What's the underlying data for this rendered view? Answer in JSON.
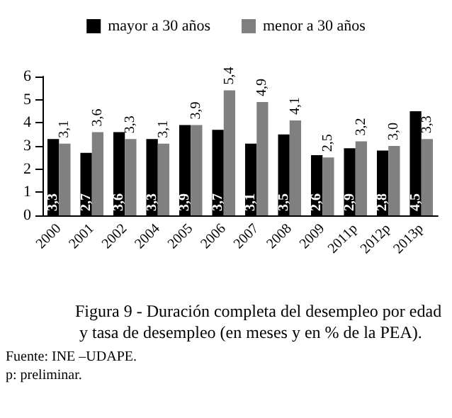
{
  "chart_data": {
    "type": "bar",
    "title": "Figura 9 - Duración completa del desempleo por edad y tasa de desempleo (en meses y en % de la PEA).",
    "categories": [
      "2000",
      "2001",
      "2002",
      "2004",
      "2005",
      "2006",
      "2007",
      "2008",
      "2009",
      "2011p",
      "2012p",
      "2013p"
    ],
    "series": [
      {
        "name": "mayor a 30 años",
        "color": "#000000",
        "values": [
          3.3,
          2.7,
          3.6,
          3.3,
          3.9,
          3.7,
          3.1,
          3.5,
          2.6,
          2.9,
          2.8,
          4.5
        ],
        "value_labels": [
          "3,3",
          "2,7",
          "3,6",
          "3,3",
          "3,9",
          "3,7",
          "3,1",
          "3,5",
          "2,6",
          "2,9",
          "2,8",
          "4,5"
        ]
      },
      {
        "name": "menor a 30 años",
        "color": "#808080",
        "values": [
          3.1,
          3.6,
          3.3,
          3.1,
          3.9,
          5.4,
          4.9,
          4.1,
          2.5,
          3.2,
          3.0,
          3.3
        ],
        "value_labels": [
          "3,1",
          "3,6",
          "3,3",
          "3,1",
          "3,9",
          "5,4",
          "4,9",
          "4,1",
          "2,5",
          "3,2",
          "3,0",
          "3,3"
        ]
      }
    ],
    "ylim": [
      0,
      6
    ],
    "yticks": [
      0,
      1,
      2,
      3,
      4,
      5,
      6
    ],
    "grid": false,
    "legend": "top",
    "annotations": [
      "Fuente: INE –UDAPE.",
      "p: preliminar."
    ]
  }
}
